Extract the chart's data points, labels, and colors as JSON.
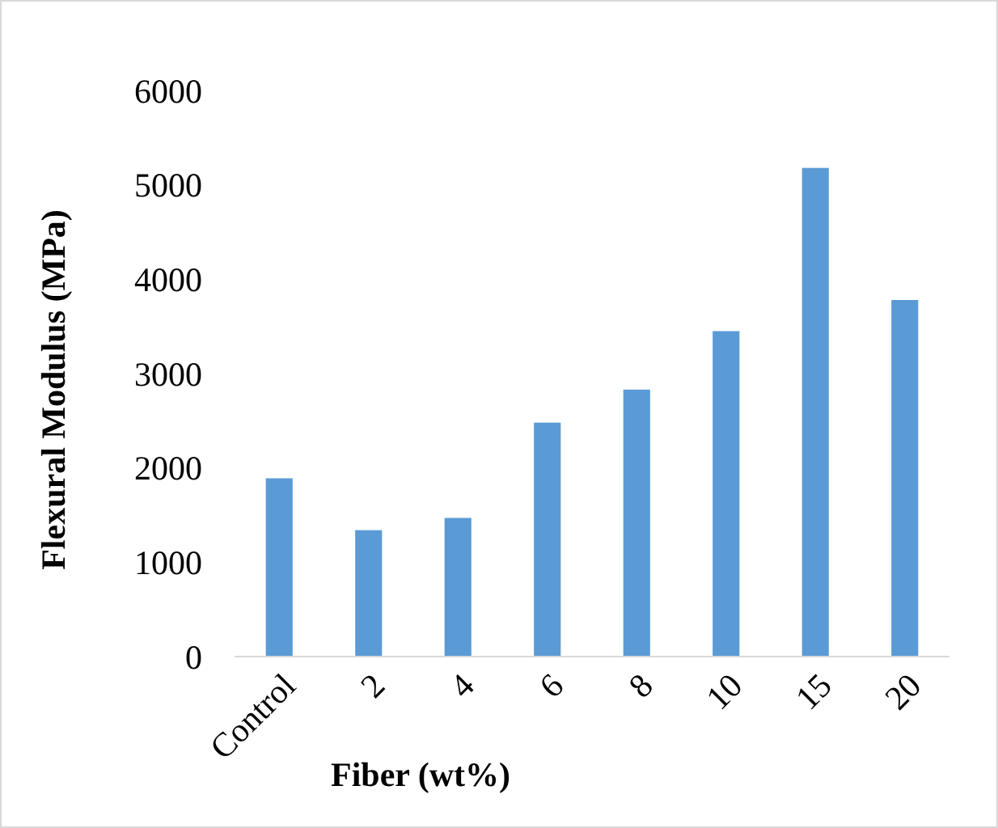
{
  "chart_data": {
    "type": "bar",
    "xlabel": "Fiber (wt%)",
    "ylabel": "Flexural Modulus (MPa)",
    "categories": [
      "Control",
      "2",
      "4",
      "6",
      "8",
      "10",
      "15",
      "20"
    ],
    "values": [
      1890,
      1340,
      1470,
      2480,
      2830,
      3450,
      5180,
      3780
    ],
    "color": "#5b9bd5",
    "ylim": [
      0,
      6000
    ],
    "yticks": [
      0,
      1000,
      2000,
      3000,
      4000,
      5000,
      6000
    ],
    "grid": false
  }
}
